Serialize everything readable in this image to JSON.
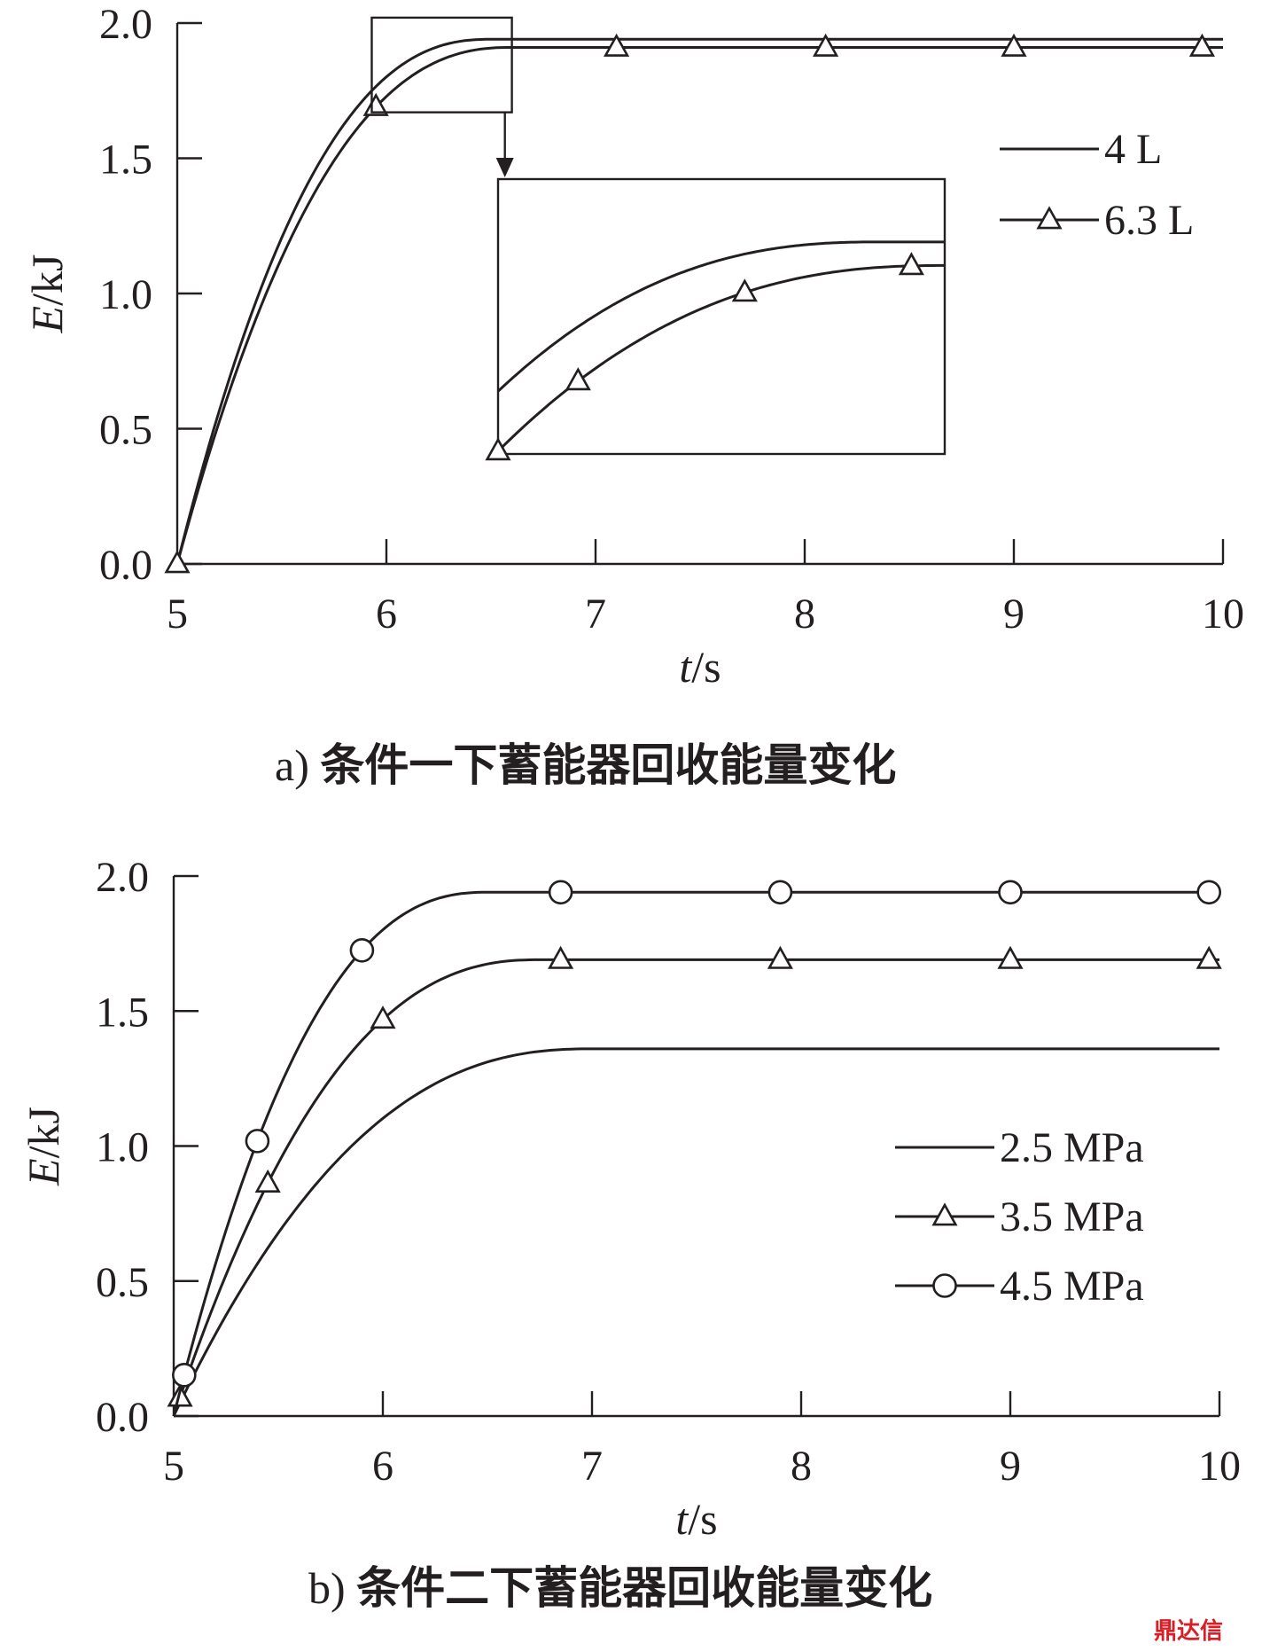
{
  "chart_data": [
    {
      "type": "line",
      "panel": "a)",
      "caption": "条件一下蓄能器回收能量变化",
      "xlabel_italic": "t",
      "xlabel_unit": "/s",
      "ylabel_italic": "E",
      "ylabel_unit": "/kJ",
      "xlim": [
        5,
        10
      ],
      "ylim": [
        0,
        2
      ],
      "xticks": [
        "5",
        "6",
        "7",
        "8",
        "9",
        "10"
      ],
      "yticks": [
        "0.0",
        "0.5",
        "1.0",
        "1.5",
        "2.0"
      ],
      "legend_position": "right",
      "series": [
        {
          "name": "4 L",
          "marker": "none",
          "plateau": 1.94,
          "rise_end": 6.5,
          "markers_x": []
        },
        {
          "name": "6.3 L",
          "marker": "triangle",
          "plateau": 1.91,
          "rise_end": 6.6,
          "markers_x": [
            5.0,
            5.95,
            7.1,
            8.1,
            9.0,
            9.9
          ]
        }
      ],
      "inset": {
        "zoom_x": [
          5.93,
          6.6
        ],
        "zoom_y": [
          1.67,
          2.02
        ],
        "arrow": true
      }
    },
    {
      "type": "line",
      "panel": "b)",
      "caption": "条件二下蓄能器回收能量变化",
      "xlabel_italic": "t",
      "xlabel_unit": "/s",
      "ylabel_italic": "E",
      "ylabel_unit": "/kJ",
      "xlim": [
        5,
        10
      ],
      "ylim": [
        0,
        2
      ],
      "xticks": [
        "5",
        "6",
        "7",
        "8",
        "9",
        "10"
      ],
      "yticks": [
        "0.0",
        "0.5",
        "1.0",
        "1.5",
        "2.0"
      ],
      "legend_position": "right",
      "series": [
        {
          "name": "2.5 MPa",
          "marker": "none",
          "plateau": 1.36,
          "rise_end": 7.0,
          "markers_x": []
        },
        {
          "name": "3.5 MPa",
          "marker": "triangle",
          "plateau": 1.69,
          "rise_end": 6.75,
          "markers_x": [
            5.03,
            5.45,
            6.0,
            6.85,
            7.9,
            9.0,
            9.95
          ]
        },
        {
          "name": "4.5 MPa",
          "marker": "circle",
          "plateau": 1.94,
          "rise_end": 6.5,
          "markers_x": [
            5.05,
            5.4,
            5.9,
            6.85,
            7.9,
            9.0,
            9.95
          ]
        }
      ]
    }
  ],
  "watermark": "鼎达信"
}
